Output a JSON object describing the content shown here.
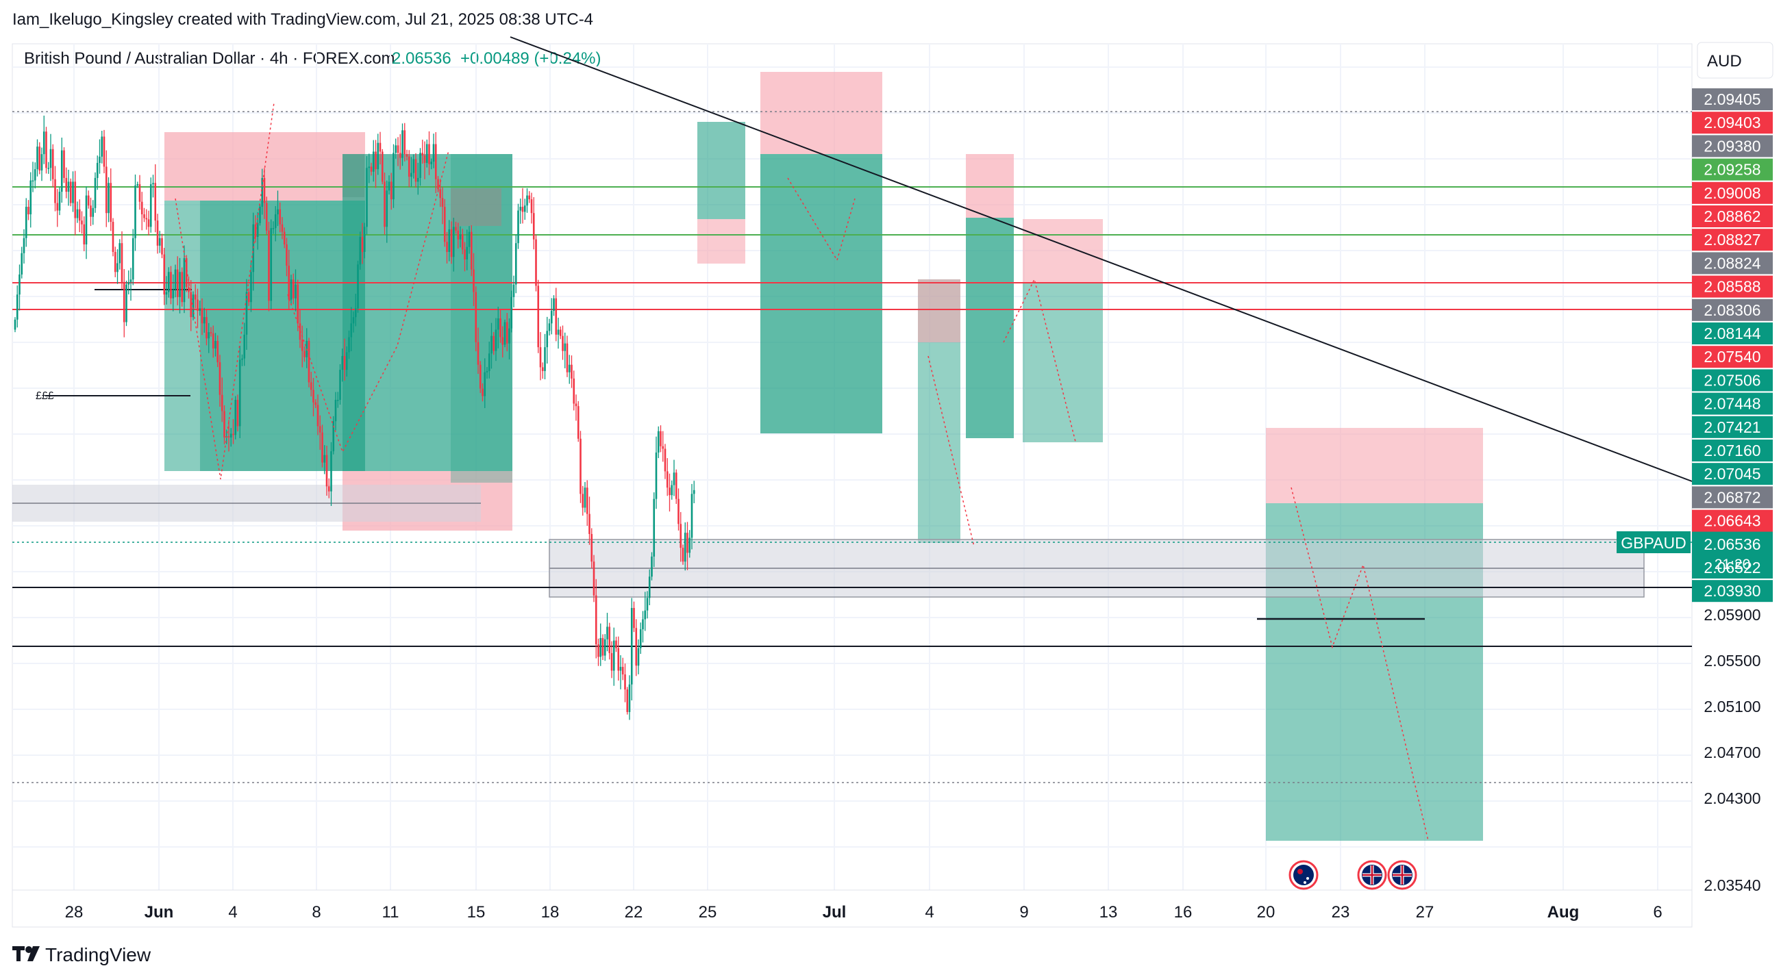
{
  "header": {
    "publisher": "Iam_Ikelugo_Kingsley created with TradingView.com, Jul 21, 2025 08:38 UTC-4"
  },
  "chart_data": {
    "type": "candlestick",
    "title": "British Pound / Australian Dollar · 4h · FOREX.com",
    "last_price": "2.06536",
    "change": "+0.00489 (+0.24%)",
    "currency": "AUD",
    "ticker_label": "GBPAUD",
    "countdown": "21:20",
    "ylim": [
      2.0335,
      2.101
    ],
    "grid": true,
    "x_ticks": [
      "28",
      "Jun",
      "4",
      "8",
      "11",
      "15",
      "18",
      "22",
      "25",
      "Jul",
      "4",
      "9",
      "13",
      "16",
      "20",
      "23",
      "27",
      "Aug",
      "6"
    ],
    "y_ticks": [
      "2.05900",
      "2.05500",
      "2.05100",
      "2.04700",
      "2.04300",
      "2.03540"
    ],
    "price_tags": [
      {
        "value": "2.09405",
        "color": "#787b86"
      },
      {
        "value": "2.09403",
        "color": "#f23645"
      },
      {
        "value": "2.09380",
        "color": "#787b86"
      },
      {
        "value": "2.09258",
        "color": "#4caf50"
      },
      {
        "value": "2.09008",
        "color": "#f23645"
      },
      {
        "value": "2.08862",
        "color": "#f23645"
      },
      {
        "value": "2.08827",
        "color": "#f23645"
      },
      {
        "value": "2.08824",
        "color": "#787b86"
      },
      {
        "value": "2.08588",
        "color": "#f23645"
      },
      {
        "value": "2.08306",
        "color": "#787b86"
      },
      {
        "value": "2.08144",
        "color": "#089981"
      },
      {
        "value": "2.07540",
        "color": "#f23645"
      },
      {
        "value": "2.07506",
        "color": "#089981"
      },
      {
        "value": "2.07448",
        "color": "#089981"
      },
      {
        "value": "2.07421",
        "color": "#089981"
      },
      {
        "value": "2.07160",
        "color": "#089981"
      },
      {
        "value": "2.07045",
        "color": "#089981"
      },
      {
        "value": "2.06872",
        "color": "#787b86"
      },
      {
        "value": "2.06643",
        "color": "#f23645"
      },
      {
        "value": "2.06536",
        "color": "#089981"
      },
      {
        "value": "2.06522",
        "color": "#089981"
      },
      {
        "value": "2.03930",
        "color": "#089981"
      }
    ],
    "annotations": [
      "£££"
    ],
    "colors": {
      "up": "#089981",
      "down": "#f23645",
      "profit_zone": "#2aa48a",
      "loss_zone": "#f7a8b2"
    },
    "series": [
      {
        "name": "GBPAUD",
        "values": [
          2.079,
          2.081,
          2.0826,
          2.0843,
          2.0855,
          2.088,
          2.0874,
          2.0901,
          2.0901,
          2.091,
          2.0928,
          2.0909,
          2.0922,
          2.094,
          2.0911,
          2.0911,
          2.0926,
          2.0902,
          2.0883,
          2.0877,
          2.0892,
          2.0925,
          2.0903,
          2.0892,
          2.09,
          2.0883,
          2.09,
          2.0871,
          2.0878,
          2.0869,
          2.0866,
          2.085,
          2.0889,
          2.0881,
          2.0872,
          2.0879,
          2.0903,
          2.0915,
          2.092,
          2.0936,
          2.0912,
          2.0875,
          2.0899,
          2.0868,
          2.0844,
          2.0828,
          2.0835,
          2.0851,
          2.082,
          2.0788,
          2.0818,
          2.082,
          2.0822,
          2.0855,
          2.0897,
          2.0898,
          2.0884,
          2.0874,
          2.0871,
          2.087,
          2.0864,
          2.0898,
          2.0899,
          2.0869,
          2.0849,
          2.0855,
          2.0842,
          2.081,
          2.0812,
          2.0828,
          2.0807,
          2.0814,
          2.083,
          2.0808,
          2.0828,
          2.0804,
          2.0839,
          2.0816,
          2.0812,
          2.0792,
          2.081,
          2.0806,
          2.0797,
          2.0799,
          2.0787,
          2.0792,
          2.0775,
          2.078,
          2.0779,
          2.0767,
          2.0773,
          2.0756,
          2.073,
          2.0717,
          2.0696,
          2.0697,
          2.0696,
          2.0699,
          2.0698,
          2.0726,
          2.0705,
          2.0758,
          2.0759,
          2.0778,
          2.0812,
          2.0804,
          2.0828,
          2.0866,
          2.0856,
          2.0867,
          2.088,
          2.0903,
          2.0883,
          2.0861,
          2.0805,
          2.0863,
          2.0863,
          2.0874,
          2.0878,
          2.0866,
          2.086,
          2.085,
          2.0833,
          2.0806,
          2.0822,
          2.0807,
          2.0818,
          2.0787,
          2.0774,
          2.0765,
          2.076,
          2.0773,
          2.074,
          2.0734,
          2.0724,
          2.0722,
          2.0705,
          2.07,
          2.0676,
          2.0682,
          2.0657,
          2.0653,
          2.0685,
          2.0709,
          2.0726,
          2.0726,
          2.075,
          2.0761,
          2.075,
          2.0764,
          2.0776,
          2.0787,
          2.0792,
          2.0799,
          2.0834,
          2.0856,
          2.0844,
          2.0864,
          2.0911,
          2.0912,
          2.0908,
          2.0924,
          2.091,
          2.0931,
          2.0924,
          2.09,
          2.0864,
          2.0893,
          2.09,
          2.0886,
          2.0923,
          2.0929,
          2.0923,
          2.0919,
          2.0941,
          2.0922,
          2.092,
          2.0904,
          2.0907,
          2.0918,
          2.09,
          2.0903,
          2.0923,
          2.0921,
          2.0915,
          2.093,
          2.0914,
          2.0916,
          2.093,
          2.0902,
          2.0894,
          2.0887,
          2.088,
          2.0852,
          2.0844,
          2.0862,
          2.084,
          2.0864,
          2.0861,
          2.0854,
          2.0858,
          2.0846,
          2.0838,
          2.0848,
          2.086,
          2.083,
          2.0812,
          2.0772,
          2.0754,
          2.0735,
          2.0729,
          2.0748,
          2.0749,
          2.0763,
          2.0777,
          2.0765,
          2.0782,
          2.0791,
          2.0776,
          2.077,
          2.0788,
          2.0771,
          2.0783,
          2.0808,
          2.0818,
          2.0851,
          2.0877,
          2.088,
          2.0876,
          2.0881,
          2.0889,
          2.0886,
          2.0875,
          2.0854,
          2.0817,
          2.0768,
          2.0752,
          2.0749,
          2.0768,
          2.0781,
          2.0787,
          2.0797,
          2.0807,
          2.0778,
          2.0782,
          2.0777,
          2.0765,
          2.0771,
          2.0748,
          2.0754,
          2.0743,
          2.0723,
          2.0721,
          2.0695,
          2.0651,
          2.064,
          2.0656,
          2.0635,
          2.0619,
          2.0597,
          2.057,
          2.0531,
          2.0521,
          2.0536,
          2.0522,
          2.0535,
          2.0545,
          2.0524,
          2.051,
          2.0534,
          2.0528,
          2.051,
          2.0513,
          2.0507,
          2.0495,
          2.0477,
          2.0499,
          2.056,
          2.0544,
          2.0514,
          2.0528,
          2.0543,
          2.0551,
          2.0558,
          2.0568,
          2.0585,
          2.0601,
          2.0647,
          2.0684,
          2.0701,
          2.0689,
          2.0687,
          2.0669,
          2.0656,
          2.065,
          2.0658,
          2.0668,
          2.0647,
          2.0627,
          2.0608,
          2.0597,
          2.062,
          2.0604,
          2.0616,
          2.0651,
          2.0654
        ]
      }
    ]
  },
  "footer": {
    "brand": "TradingView"
  }
}
